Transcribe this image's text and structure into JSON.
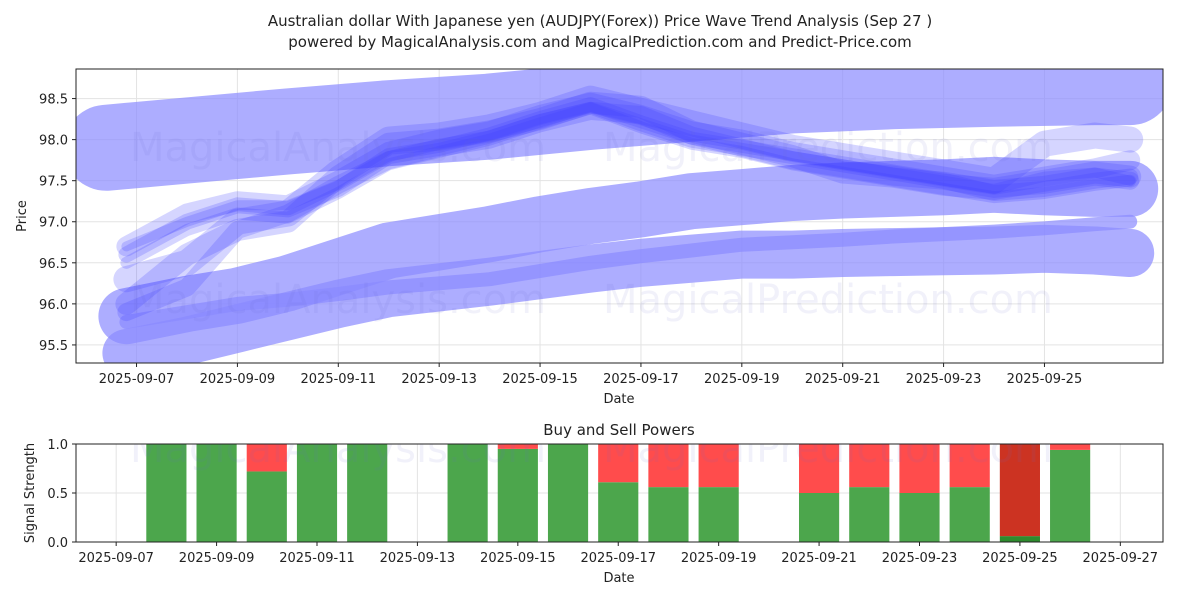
{
  "chart_data": [
    {
      "type": "line",
      "title_line1": "Australian dollar With Japanese yen (AUDJPY(Forex)) Price Wave Trend Analysis (Sep 27 )",
      "title_line2": "powered by MagicalAnalysis.com and MagicalPrediction.com and Predict-Price.com",
      "xlabel": "Date",
      "ylabel": "Price",
      "ylim": [
        95.28,
        98.86
      ],
      "xlim": [
        -0.7,
        20.85
      ],
      "x_ticks": [
        {
          "day": 0.5,
          "label": "2025-09-07"
        },
        {
          "day": 2.5,
          "label": "2025-09-09"
        },
        {
          "day": 4.5,
          "label": "2025-09-11"
        },
        {
          "day": 6.5,
          "label": "2025-09-13"
        },
        {
          "day": 8.5,
          "label": "2025-09-15"
        },
        {
          "day": 10.5,
          "label": "2025-09-17"
        },
        {
          "day": 12.5,
          "label": "2025-09-19"
        },
        {
          "day": 14.5,
          "label": "2025-09-21"
        },
        {
          "day": 16.5,
          "label": "2025-09-23"
        },
        {
          "day": 18.5,
          "label": "2025-09-25"
        }
      ],
      "y_ticks": [
        95.5,
        96.0,
        96.5,
        97.0,
        97.5,
        98.0,
        98.5
      ],
      "grid": true,
      "wave_color": "#4040ff",
      "price_series": [
        {
          "name": "price-path-1",
          "x": [
            0.3,
            1.5,
            2.5,
            3.5,
            4.5,
            5.5,
            6.5,
            7.5,
            8.5,
            9.5,
            10.5,
            11.5,
            12.5,
            13.5,
            14.5,
            15.5,
            16.5,
            17.5,
            18.5,
            19.5,
            20.2
          ],
          "y": [
            96.6,
            97.0,
            97.2,
            97.15,
            97.4,
            97.8,
            97.9,
            98.05,
            98.25,
            98.42,
            98.2,
            98.0,
            97.9,
            97.8,
            97.7,
            97.6,
            97.5,
            97.35,
            97.4,
            97.5,
            97.55
          ]
        },
        {
          "name": "price-path-2",
          "x": [
            0.3,
            1.5,
            2.5,
            3.5,
            4.5,
            5.5,
            6.5,
            7.5,
            8.5,
            9.5,
            10.5,
            11.5,
            12.5,
            13.5,
            14.5,
            15.5,
            16.5,
            17.5,
            18.5,
            19.5,
            20.2
          ],
          "y": [
            96.7,
            97.1,
            97.25,
            97.2,
            97.5,
            97.85,
            98.0,
            98.1,
            98.3,
            98.45,
            98.3,
            98.1,
            98.0,
            97.85,
            97.75,
            97.65,
            97.55,
            97.45,
            97.55,
            97.65,
            97.75
          ]
        },
        {
          "name": "price-path-3",
          "x": [
            0.3,
            1.5,
            2.5,
            3.5,
            4.5,
            5.5,
            6.5,
            7.5,
            8.5,
            9.5,
            10.5,
            11.5,
            12.5,
            13.5,
            14.5,
            15.5,
            16.5,
            17.5,
            18.5,
            19.5,
            20.2
          ],
          "y": [
            96.5,
            96.9,
            97.1,
            97.05,
            97.35,
            97.7,
            97.85,
            98.0,
            98.2,
            98.38,
            98.15,
            97.95,
            97.85,
            97.7,
            97.6,
            97.5,
            97.4,
            97.3,
            97.35,
            97.45,
            97.5
          ]
        },
        {
          "name": "price-path-4",
          "x": [
            0.3,
            1.5,
            2.5,
            3.5,
            4.5,
            5.5,
            6.5,
            7.5,
            8.5,
            9.5,
            10.5,
            11.5,
            12.5,
            13.5,
            14.5,
            15.5,
            16.5,
            17.5,
            18.5,
            19.5,
            20.2
          ],
          "y": [
            96.3,
            96.5,
            97.0,
            97.1,
            97.6,
            98.0,
            98.05,
            98.15,
            98.3,
            98.5,
            98.35,
            98.2,
            98.05,
            97.9,
            97.8,
            97.7,
            97.6,
            97.5,
            97.95,
            98.05,
            98.0
          ]
        },
        {
          "name": "price-path-5",
          "x": [
            0.3,
            1.5,
            2.5,
            3.5,
            4.5,
            5.5,
            6.5,
            7.5,
            8.5,
            9.5,
            10.5,
            11.5,
            12.5,
            13.5,
            14.5,
            15.5,
            16.5,
            17.5,
            18.5,
            19.5,
            20.2
          ],
          "y": [
            96.0,
            96.6,
            96.9,
            97.0,
            97.55,
            97.95,
            98.0,
            98.1,
            98.25,
            98.45,
            98.4,
            98.1,
            97.95,
            97.8,
            97.6,
            97.55,
            97.45,
            97.4,
            97.5,
            97.6,
            97.55
          ]
        },
        {
          "name": "price-path-6",
          "x": [
            0.3,
            1.5,
            2.5,
            3.5,
            4.5,
            5.5,
            6.5,
            7.5,
            8.5,
            9.5,
            10.5,
            11.5,
            12.5,
            13.5,
            14.5,
            15.5,
            16.5,
            17.5,
            18.5,
            19.5,
            20.2
          ],
          "y": [
            95.9,
            96.2,
            96.9,
            97.1,
            97.45,
            97.75,
            97.9,
            98.0,
            98.2,
            98.35,
            98.3,
            98.05,
            97.9,
            97.75,
            97.65,
            97.55,
            97.5,
            97.4,
            97.45,
            97.55,
            97.5
          ]
        },
        {
          "name": "price-path-7",
          "x": [
            0.3,
            1.5,
            2.5,
            3.5,
            4.5,
            5.5,
            6.5,
            7.5,
            8.5,
            9.5,
            10.5,
            11.5,
            12.5,
            13.5,
            14.5,
            15.5,
            16.5,
            17.5,
            18.5,
            19.5,
            20.2
          ],
          "y": [
            96.7,
            97.0,
            97.2,
            97.2,
            97.45,
            97.8,
            97.9,
            98.05,
            98.25,
            98.4,
            98.2,
            98.0,
            97.9,
            97.8,
            97.7,
            97.6,
            97.5,
            97.4,
            97.55,
            97.6,
            97.5
          ]
        }
      ],
      "trend_bands": [
        {
          "name": "trend-band-upper",
          "x": [
            -0.1,
            3.5,
            5.5,
            7.5,
            9.5,
            11.5,
            13.5,
            15.5,
            17.5,
            19.5,
            20.2
          ],
          "y": [
            97.9,
            98.1,
            98.2,
            98.28,
            98.4,
            98.5,
            98.6,
            98.65,
            98.68,
            98.7,
            98.7
          ],
          "width": 86
        },
        {
          "name": "trend-band-middle",
          "x": [
            0.3,
            1.5,
            2.5,
            3.5,
            4.5,
            5.5,
            6.5,
            7.5,
            8.5,
            9.5,
            10.5,
            11.5,
            12.5,
            13.5,
            14.5,
            15.5,
            16.5,
            17.5,
            18.5,
            19.5,
            20.2
          ],
          "y": [
            95.85,
            96.0,
            96.1,
            96.25,
            96.45,
            96.65,
            96.75,
            96.85,
            96.97,
            97.07,
            97.15,
            97.25,
            97.3,
            97.35,
            97.38,
            97.4,
            97.42,
            97.45,
            97.42,
            97.4,
            97.4
          ],
          "width": 56
        },
        {
          "name": "trend-band-lower",
          "x": [
            0.3,
            1.5,
            2.5,
            3.5,
            4.5,
            5.5,
            6.5,
            7.5,
            8.5,
            9.5,
            10.5,
            11.5,
            12.5,
            13.5,
            14.5,
            15.5,
            16.5,
            17.5,
            18.5,
            19.5,
            20.2
          ],
          "y": [
            95.4,
            95.55,
            95.7,
            95.85,
            96.0,
            96.13,
            96.2,
            96.27,
            96.35,
            96.43,
            96.5,
            96.55,
            96.6,
            96.6,
            96.62,
            96.63,
            96.64,
            96.65,
            96.67,
            96.65,
            96.62
          ],
          "width": 48
        },
        {
          "name": "trend-band-base",
          "x": [
            0.3,
            1.5,
            2.5,
            3.5,
            4.5,
            5.5,
            6.5,
            7.5,
            8.5,
            9.5,
            10.5,
            11.5,
            12.5,
            13.5,
            14.5,
            15.5,
            16.5,
            17.5,
            18.5,
            19.5,
            20.2
          ],
          "y": [
            95.78,
            95.9,
            96.0,
            96.05,
            96.12,
            96.2,
            96.25,
            96.3,
            96.4,
            96.5,
            96.58,
            96.65,
            96.72,
            96.75,
            96.78,
            96.82,
            96.85,
            96.88,
            96.92,
            96.97,
            97.0
          ],
          "width": 14
        }
      ]
    },
    {
      "type": "bar",
      "title": "Buy and Sell Powers",
      "xlabel": "Date",
      "ylabel": "Signal Strength",
      "ylim": [
        0,
        1
      ],
      "xlim": [
        -0.8,
        20.85
      ],
      "y_ticks": [
        0.0,
        0.5,
        1.0
      ],
      "x_ticks": [
        {
          "day": 0,
          "label": "2025-09-07"
        },
        {
          "day": 2,
          "label": "2025-09-09"
        },
        {
          "day": 4,
          "label": "2025-09-11"
        },
        {
          "day": 6,
          "label": "2025-09-13"
        },
        {
          "day": 8,
          "label": "2025-09-15"
        },
        {
          "day": 10,
          "label": "2025-09-17"
        },
        {
          "day": 12,
          "label": "2025-09-19"
        },
        {
          "day": 14,
          "label": "2025-09-21"
        },
        {
          "day": 16,
          "label": "2025-09-23"
        },
        {
          "day": 18,
          "label": "2025-09-25"
        },
        {
          "day": 20,
          "label": "2025-09-27"
        }
      ],
      "buy_color": "#4ca64c",
      "sell_color": "#ff4c4c",
      "strong_buy_color": "#2e8b2e",
      "strong_sell_color": "#cc3322",
      "bars": [
        {
          "day": 1,
          "buy": 1.0,
          "sell": 0.0
        },
        {
          "day": 2,
          "buy": 1.0,
          "sell": 0.0
        },
        {
          "day": 3,
          "buy": 0.72,
          "sell": 0.28
        },
        {
          "day": 4,
          "buy": 1.0,
          "sell": 0.0
        },
        {
          "day": 5,
          "buy": 1.0,
          "sell": 0.0
        },
        {
          "day": 7,
          "buy": 1.0,
          "sell": 0.0
        },
        {
          "day": 8,
          "buy": 0.95,
          "sell": 0.05
        },
        {
          "day": 9,
          "buy": 1.0,
          "sell": 0.0
        },
        {
          "day": 10,
          "buy": 0.61,
          "sell": 0.39
        },
        {
          "day": 11,
          "buy": 0.56,
          "sell": 0.44
        },
        {
          "day": 12,
          "buy": 0.56,
          "sell": 0.44
        },
        {
          "day": 14,
          "buy": 0.5,
          "sell": 0.5
        },
        {
          "day": 15,
          "buy": 0.56,
          "sell": 0.44
        },
        {
          "day": 16,
          "buy": 0.5,
          "sell": 0.5
        },
        {
          "day": 17,
          "buy": 0.56,
          "sell": 0.44
        },
        {
          "day": 18,
          "buy": 0.06,
          "sell": 0.94,
          "strong": true
        },
        {
          "day": 19,
          "buy": 0.94,
          "sell": 0.06
        }
      ]
    }
  ],
  "watermarks": [
    "MagicalAnalysis.com",
    "MagicalPrediction.com"
  ]
}
